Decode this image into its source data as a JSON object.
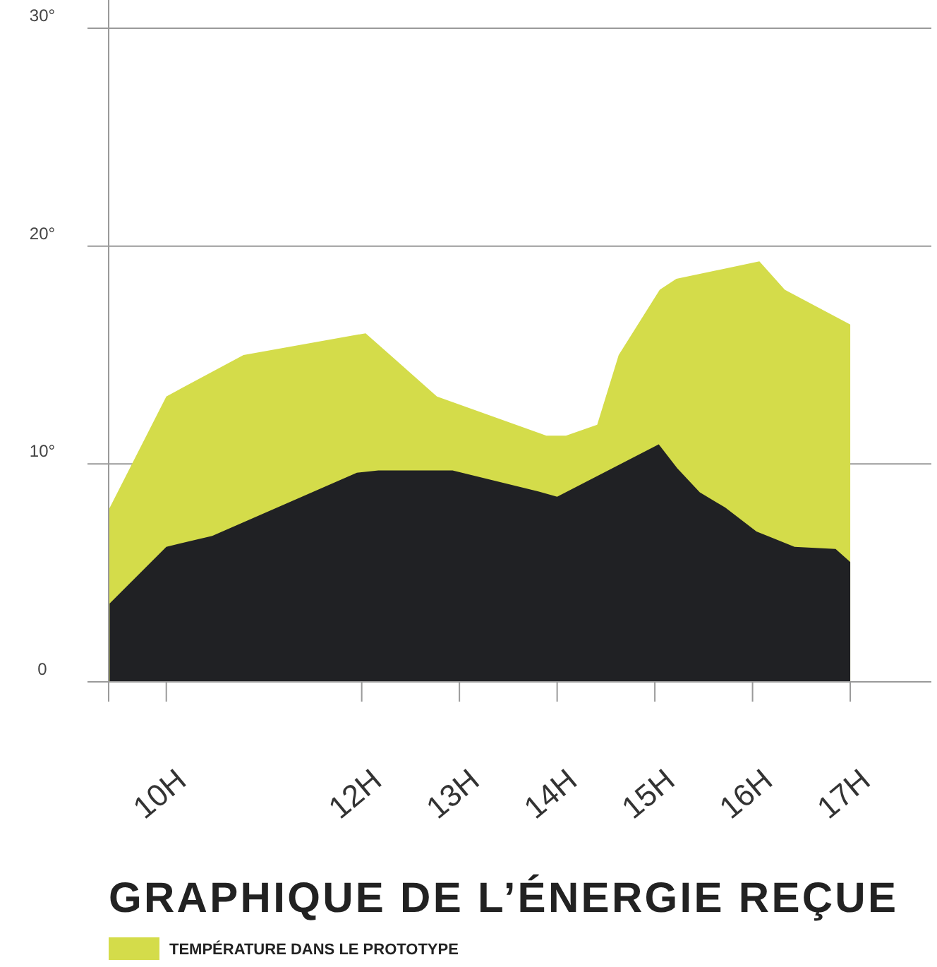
{
  "chart_data": {
    "type": "area",
    "title": "GRAPHIQUE DE L’ÉNERGIE REÇUE",
    "xlim": [
      9.41,
      17.83
    ],
    "xticks": [
      {
        "value": 9.41,
        "label": null
      },
      {
        "value": 10,
        "label": "10H"
      },
      {
        "value": 12,
        "label": "12H"
      },
      {
        "value": 13,
        "label": "13H"
      },
      {
        "value": 14,
        "label": "14H"
      },
      {
        "value": 15,
        "label": "15H"
      },
      {
        "value": 16,
        "label": "16H"
      },
      {
        "value": 17,
        "label": "17H"
      }
    ],
    "ylim": [
      0,
      30
    ],
    "yticks": [
      0,
      {
        "value": 10,
        "label": "10°"
      },
      {
        "value": 20,
        "label": "20°"
      },
      {
        "value": 30,
        "label": "30°"
      }
    ],
    "grid": "y",
    "legend": "bottom",
    "series": [
      {
        "name": "TEMPÉRATURE DANS LE PROTOTYPE",
        "color": "#d4dc4a",
        "x": [
          9.41,
          10,
          10.79,
          12.04,
          12.77,
          13.89,
          14.09,
          14.41,
          14.63,
          15.05,
          15.22,
          16.07,
          16.33,
          17.0
        ],
        "values": [
          7.9,
          13.1,
          15.0,
          16.0,
          13.1,
          11.3,
          11.3,
          11.8,
          15.0,
          18.0,
          18.5,
          19.3,
          18.0,
          16.4
        ]
      },
      {
        "color": "#202124",
        "x": [
          9.42,
          10,
          10.47,
          11.95,
          12.17,
          12.93,
          13.84,
          14.0,
          15.04,
          15.23,
          15.46,
          15.72,
          16.04,
          16.43,
          16.85,
          17.0
        ],
        "values": [
          3.6,
          6.2,
          6.7,
          9.6,
          9.7,
          9.7,
          8.7,
          8.5,
          10.9,
          9.8,
          8.7,
          8.0,
          6.9,
          6.2,
          6.1,
          5.5
        ]
      }
    ]
  }
}
